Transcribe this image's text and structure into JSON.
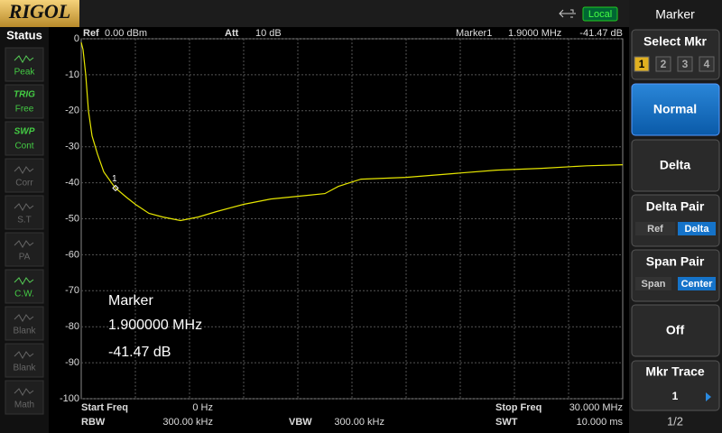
{
  "top_bar": {
    "logo": "RIGOL",
    "mode": "Local"
  },
  "status": {
    "title": "Status",
    "items": [
      {
        "top": "",
        "label": "Peak"
      },
      {
        "top": "TRIG",
        "label": "Free"
      },
      {
        "top": "SWP",
        "label": "Cont"
      },
      {
        "top": "",
        "label": "Corr"
      },
      {
        "top": "",
        "label": "S.T"
      },
      {
        "top": "",
        "label": "PA"
      },
      {
        "top": "",
        "label": "C.W."
      },
      {
        "top": "",
        "label": "Blank"
      },
      {
        "top": "",
        "label": "Blank"
      },
      {
        "top": "",
        "label": "Math"
      }
    ]
  },
  "header": {
    "ref_label": "Ref",
    "ref": "0.00 dBm",
    "att_label": "Att",
    "att": "10 dB",
    "marker_label": "Marker1",
    "marker_freq": "1.9000 MHz",
    "marker_amp": "-41.47 dB"
  },
  "footer": {
    "start_label": "Start Freq",
    "start": "0 Hz",
    "stop_label": "Stop Freq",
    "stop": "30.000 MHz",
    "rbw_label": "RBW",
    "rbw": "300.00 kHz",
    "vbw_label": "VBW",
    "vbw": "300.00 kHz",
    "swt_label": "SWT",
    "swt": "10.000 ms"
  },
  "marker_box": {
    "title": "Marker",
    "freq": "1.900000 MHz",
    "amp": "-41.47 dB"
  },
  "menu": {
    "title": "Marker",
    "select": "Select Mkr",
    "select_options": [
      "1",
      "2",
      "3",
      "4"
    ],
    "normal": "Normal",
    "delta": "Delta",
    "delta_pair": "Delta Pair",
    "delta_pair_options": [
      "Ref",
      "Delta"
    ],
    "span_pair": "Span Pair",
    "span_pair_options": [
      "Span",
      "Center"
    ],
    "off": "Off",
    "mkr_trace": "Mkr Trace",
    "mkr_trace_value": "1",
    "page": "1/2"
  },
  "chart_data": {
    "type": "line",
    "color": "#e6e600",
    "xlim": [
      0,
      30
    ],
    "ylim": [
      -100,
      0
    ],
    "yticks": [
      0,
      -10,
      -20,
      -30,
      -40,
      -50,
      -60,
      -70,
      -80,
      -90,
      -100
    ],
    "grid": true,
    "x": [
      0,
      0.1,
      0.25,
      0.4,
      0.6,
      0.9,
      1.25,
      1.75,
      1.9,
      2.5,
      3,
      3.75,
      4.5,
      5.5,
      6.5,
      7.5,
      9,
      10.5,
      12.5,
      13.5,
      14.25,
      15.5,
      18,
      20.5,
      23,
      25.5,
      28,
      30
    ],
    "values": [
      -1,
      -3,
      -10,
      -20,
      -27,
      -32,
      -37,
      -40.5,
      -41.47,
      -44,
      -46,
      -48.5,
      -49.5,
      -50.5,
      -49.5,
      -48,
      -46,
      -44.5,
      -43.5,
      -43,
      -41,
      -39,
      -38.5,
      -37.5,
      -36.5,
      -36,
      -35.3,
      -35
    ],
    "marker": {
      "label": "1",
      "x": 1.9,
      "y": -41.47
    }
  }
}
